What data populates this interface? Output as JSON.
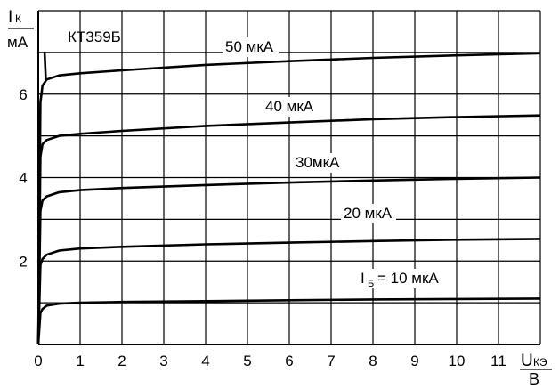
{
  "chart_data": {
    "type": "line",
    "title": "КТ359Б",
    "ylabel": {
      "main": "I",
      "sub": "К",
      "unit": "мА"
    },
    "xlabel": {
      "main": "U",
      "sub": "КЭ",
      "unit": "В"
    },
    "xlim": [
      0,
      12
    ],
    "ylim": [
      0,
      8
    ],
    "grid": true,
    "x_ticks": [
      0,
      1,
      2,
      3,
      4,
      5,
      6,
      7,
      8,
      9,
      10,
      11
    ],
    "y_ticks": [
      2,
      4,
      6
    ],
    "x": [
      0,
      0.05,
      0.1,
      0.2,
      0.5,
      1,
      2,
      4,
      6,
      8,
      10,
      12
    ],
    "series": [
      {
        "name": "10 мкА",
        "label_prefix": "I",
        "label_sub": "Б",
        "label_eq": "= 10 мкА",
        "values": [
          0,
          0.75,
          0.85,
          0.93,
          0.98,
          1.0,
          1.02,
          1.04,
          1.06,
          1.08,
          1.09,
          1.1
        ]
      },
      {
        "name": "20 мкА",
        "values": [
          0,
          1.9,
          2.05,
          2.15,
          2.25,
          2.3,
          2.34,
          2.4,
          2.44,
          2.48,
          2.51,
          2.53
        ]
      },
      {
        "name": "30мкА",
        "values": [
          0,
          3.2,
          3.45,
          3.55,
          3.65,
          3.7,
          3.75,
          3.82,
          3.88,
          3.93,
          3.97,
          4.0
        ]
      },
      {
        "name": "40 мкА",
        "values": [
          0,
          4.5,
          4.8,
          4.9,
          5.0,
          5.05,
          5.12,
          5.24,
          5.32,
          5.4,
          5.45,
          5.49
        ]
      },
      {
        "name": "50 мкА",
        "values": [
          0,
          5.8,
          6.2,
          6.35,
          6.45,
          6.5,
          6.57,
          6.7,
          6.79,
          6.87,
          6.93,
          6.98
        ]
      }
    ],
    "line_color": "#000000",
    "background": "#ffffff"
  }
}
